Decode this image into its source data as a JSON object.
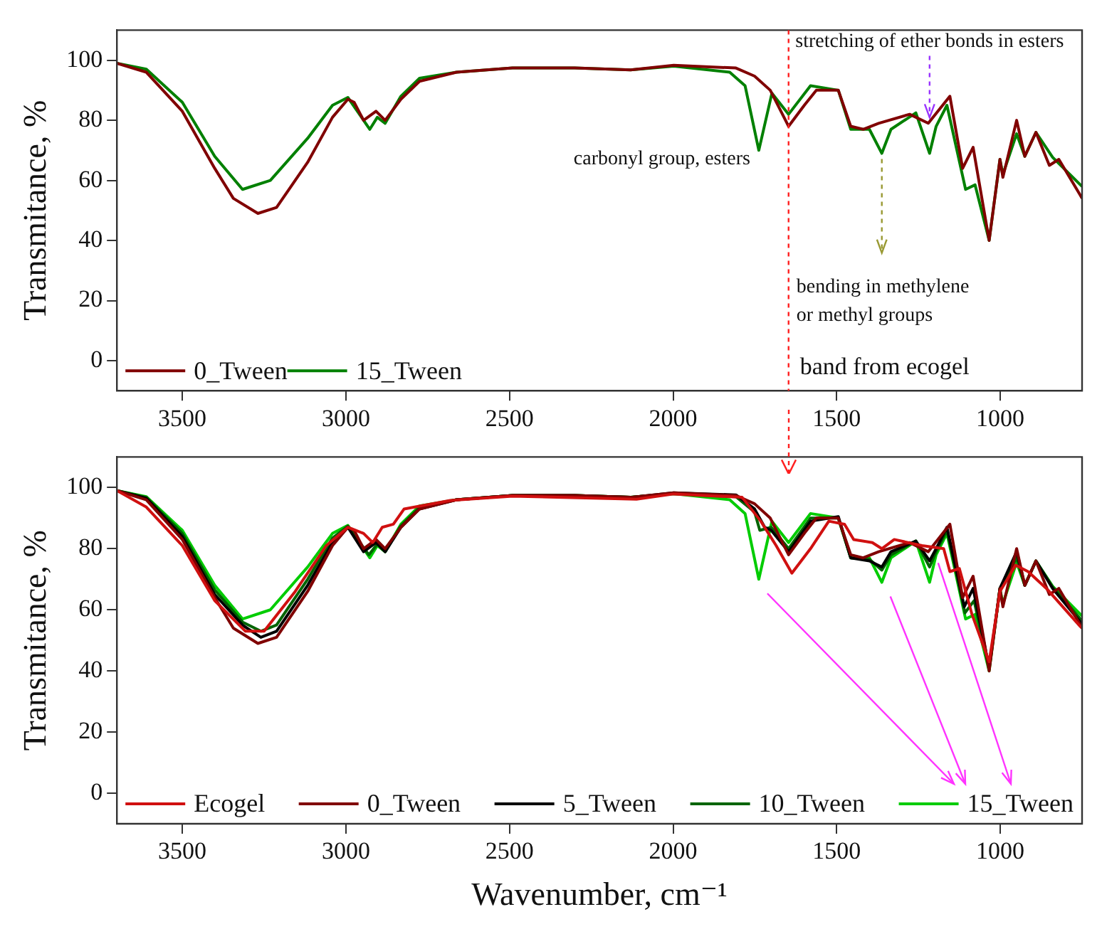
{
  "chart_data": [
    {
      "type": "line",
      "ylabel": "Transmitance, %",
      "xlim": [
        3700,
        750
      ],
      "xticks": [
        3500,
        3000,
        2500,
        2000,
        1500,
        1000
      ],
      "ylim": [
        -10,
        110
      ],
      "yticks": [
        0,
        20,
        40,
        60,
        80,
        100
      ],
      "legend": "bottom left",
      "grid": false,
      "annotations": [
        {
          "text": "carbonyl group, esters",
          "x": 1738,
          "y": 70
        },
        {
          "text": "stretching of ether bonds in esters",
          "x": 1216,
          "y": 80
        },
        {
          "text": "bending in methylene or methyl groups",
          "x": 1362,
          "y": 69
        }
      ],
      "ref_lines": [
        {
          "axis": "x",
          "value": 1647,
          "label": "band from ecogel",
          "color": "#ff2020",
          "line_style": "dashed"
        }
      ],
      "series": [
        {
          "name": "0_Tween",
          "color": "#800000",
          "x": [
            3700,
            3610,
            3500,
            3401,
            3344,
            3269,
            3212,
            3117,
            3041,
            2994,
            2975,
            2946,
            2908,
            2880,
            2832,
            2775,
            2662,
            2491,
            2301,
            2130,
            1998,
            1808,
            1751,
            1703,
            1647,
            1599,
            1562,
            1495,
            1457,
            1419,
            1372,
            1277,
            1220,
            1154,
            1115,
            1083,
            1034,
            1001,
            992,
            950,
            925,
            891,
            850,
            821,
            755,
            750
          ],
          "values": [
            99,
            96,
            83,
            64,
            54,
            49,
            51,
            66,
            81,
            87,
            86,
            80,
            83,
            80,
            87,
            93,
            96,
            97.4,
            97.4,
            96.8,
            98.3,
            97.4,
            94.7,
            90,
            78,
            85,
            90,
            90,
            78,
            77,
            79,
            82,
            79,
            88,
            64,
            71,
            40,
            67,
            61,
            80,
            68,
            76,
            65,
            67,
            55,
            54
          ]
        },
        {
          "name": "15_Tween",
          "color": "#008000",
          "x": [
            3700,
            3610,
            3500,
            3401,
            3316,
            3231,
            3117,
            3041,
            2994,
            2927,
            2904,
            2880,
            2832,
            2775,
            2662,
            2491,
            2301,
            2130,
            1998,
            1827,
            1780,
            1738,
            1698,
            1647,
            1580,
            1495,
            1457,
            1400,
            1362,
            1334,
            1258,
            1216,
            1196,
            1163,
            1106,
            1077,
            1034,
            1001,
            992,
            950,
            925,
            891,
            840,
            755,
            750
          ],
          "values": [
            99,
            97,
            86,
            68,
            57,
            60,
            74,
            85,
            87.6,
            77,
            81,
            79,
            88,
            94,
            96,
            97.4,
            97.4,
            96.8,
            98,
            96,
            91.5,
            70,
            89,
            82,
            91.5,
            90,
            77,
            77,
            69,
            77,
            82.5,
            69,
            78,
            85,
            57,
            58.5,
            40,
            67,
            62,
            75.5,
            68,
            76,
            67.7,
            58.5,
            58
          ]
        }
      ]
    },
    {
      "type": "line",
      "xlabel": "Wavenumber, cm⁻¹",
      "ylabel": "Transmitance, %",
      "xlim": [
        3700,
        750
      ],
      "xticks": [
        3500,
        3000,
        2500,
        2000,
        1500,
        1000
      ],
      "ylim": [
        -10,
        110
      ],
      "yticks": [
        0,
        20,
        40,
        60,
        80,
        100
      ],
      "legend": "bottom",
      "grid": false,
      "series": [
        {
          "name": "Ecogel",
          "color": "#d01010",
          "x": [
            3700,
            3610,
            3500,
            3401,
            3307,
            3250,
            3155,
            3060,
            2994,
            2946,
            2918,
            2889,
            2855,
            2822,
            2681,
            2491,
            2112,
            1998,
            1789,
            1732,
            1685,
            1637,
            1580,
            1524,
            1476,
            1448,
            1391,
            1362,
            1324,
            1239,
            1173,
            1154,
            1125,
            1087,
            1034,
            1001,
            953,
            915,
            859,
            755,
            750
          ],
          "values": [
            99,
            93.6,
            81,
            63,
            53,
            53,
            66,
            81,
            87,
            85,
            82,
            87,
            88,
            93,
            95.8,
            97.2,
            96.2,
            97.9,
            96.8,
            89,
            81,
            72,
            80,
            89,
            88,
            83,
            82,
            80,
            83,
            81,
            80,
            72.5,
            73.5,
            58.7,
            43,
            66,
            74.6,
            72.5,
            67,
            54.5,
            54
          ]
        },
        {
          "name": "0_Tween",
          "color": "#800000",
          "x": [
            3700,
            3610,
            3500,
            3401,
            3344,
            3269,
            3212,
            3117,
            3041,
            2994,
            2975,
            2946,
            2908,
            2880,
            2832,
            2775,
            2662,
            2491,
            2301,
            2130,
            1998,
            1808,
            1751,
            1703,
            1647,
            1599,
            1562,
            1495,
            1457,
            1419,
            1372,
            1277,
            1220,
            1154,
            1115,
            1083,
            1034,
            1001,
            992,
            950,
            925,
            891,
            850,
            821,
            755,
            750
          ],
          "values": [
            99,
            96,
            83,
            64,
            54,
            49,
            51,
            66,
            81,
            87,
            86,
            80,
            83,
            80,
            87,
            93,
            96,
            97.4,
            97.4,
            96.8,
            98.3,
            97.4,
            94.7,
            90,
            78,
            85,
            90,
            90,
            78,
            77,
            79,
            82,
            79,
            88,
            64,
            71,
            40,
            67,
            61,
            80,
            68,
            76,
            65,
            67,
            55,
            54
          ]
        },
        {
          "name": "5_Tween",
          "color": "#000000",
          "x": [
            3700,
            3610,
            3500,
            3401,
            3316,
            3260,
            3212,
            3117,
            3041,
            2994,
            2946,
            2908,
            2880,
            2832,
            2775,
            2662,
            2491,
            2301,
            2130,
            1998,
            1808,
            1751,
            1720,
            1700,
            1647,
            1580,
            1495,
            1457,
            1400,
            1362,
            1334,
            1258,
            1216,
            1196,
            1163,
            1110,
            1083,
            1034,
            1001,
            950,
            925,
            891,
            840,
            755,
            750
          ],
          "values": [
            99,
            96.5,
            84,
            65,
            55,
            51,
            53,
            68,
            82,
            87,
            79,
            82,
            79,
            87,
            93,
            96,
            97.4,
            97.4,
            96.8,
            98.3,
            97.6,
            93,
            87,
            86,
            79,
            89,
            90.5,
            77,
            76,
            74,
            79,
            82.5,
            76,
            80,
            87,
            61,
            67,
            41,
            67,
            79,
            68,
            76,
            67,
            56,
            55
          ]
        },
        {
          "name": "10_Tween",
          "color": "#006400",
          "x": [
            3700,
            3610,
            3500,
            3401,
            3316,
            3260,
            3212,
            3117,
            3041,
            2994,
            2930,
            2904,
            2880,
            2832,
            2775,
            2662,
            2491,
            2301,
            2130,
            1998,
            1808,
            1751,
            1735,
            1700,
            1647,
            1580,
            1495,
            1457,
            1400,
            1362,
            1334,
            1258,
            1216,
            1196,
            1163,
            1108,
            1080,
            1034,
            1001,
            950,
            925,
            891,
            840,
            755,
            750
          ],
          "values": [
            99,
            96.8,
            85,
            66.5,
            56,
            53,
            55,
            70,
            83.5,
            87.4,
            78,
            81.5,
            79,
            87.5,
            93.5,
            96,
            97.4,
            97.4,
            96.8,
            98,
            97,
            92,
            86,
            87,
            80,
            90,
            90,
            77,
            76.5,
            73,
            78,
            82.5,
            74,
            79,
            86,
            59,
            63,
            40.5,
            67,
            77,
            68,
            76,
            67.5,
            57,
            56
          ]
        },
        {
          "name": "15_Tween",
          "color": "#00cc00",
          "x": [
            3700,
            3610,
            3500,
            3401,
            3316,
            3231,
            3117,
            3041,
            2994,
            2927,
            2904,
            2880,
            2832,
            2775,
            2662,
            2491,
            2301,
            2130,
            1998,
            1827,
            1780,
            1738,
            1698,
            1647,
            1580,
            1495,
            1457,
            1400,
            1362,
            1334,
            1258,
            1216,
            1196,
            1163,
            1106,
            1077,
            1034,
            1001,
            992,
            950,
            925,
            891,
            840,
            755,
            750
          ],
          "values": [
            99,
            97,
            86,
            68,
            57,
            60,
            74,
            85,
            87.6,
            77,
            81,
            79,
            88,
            94,
            96,
            97.4,
            97.4,
            96.8,
            98,
            96,
            91.5,
            70,
            89,
            82,
            91.5,
            90,
            77,
            77,
            69,
            77,
            82.5,
            69,
            78,
            85,
            57,
            58.5,
            40,
            67,
            62,
            75.5,
            68,
            76,
            67.7,
            58.5,
            58
          ]
        }
      ]
    }
  ]
}
